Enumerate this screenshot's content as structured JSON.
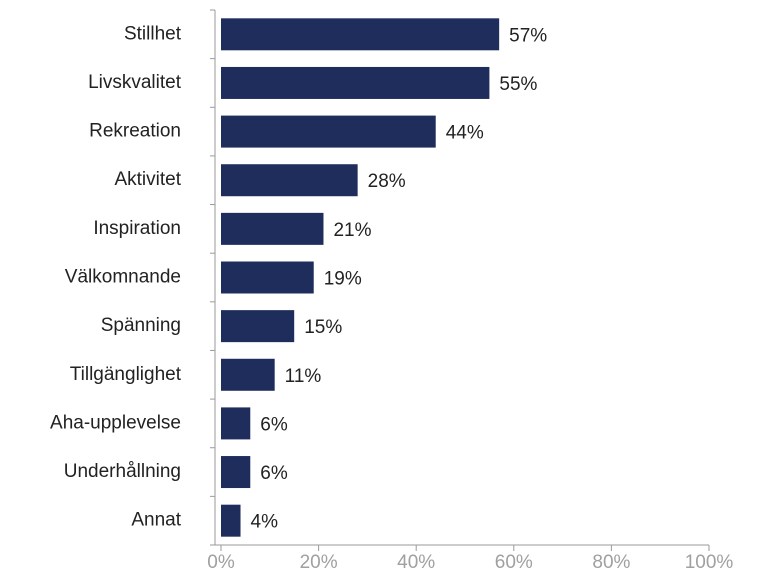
{
  "chart_data": {
    "type": "bar",
    "orientation": "horizontal",
    "categories": [
      "Stillhet",
      "Livskvalitet",
      "Rekreation",
      "Aktivitet",
      "Inspiration",
      "Välkomnande",
      "Spänning",
      "Tillgänglighet",
      "Aha-upplevelse",
      "Underhållning",
      "Annat"
    ],
    "values": [
      57,
      55,
      44,
      28,
      21,
      19,
      15,
      11,
      6,
      6,
      4
    ],
    "value_labels": [
      "57%",
      "55%",
      "44%",
      "28%",
      "21%",
      "19%",
      "15%",
      "11%",
      "6%",
      "6%",
      "4%"
    ],
    "color": "#1f2d5c",
    "xlim": [
      0,
      100
    ],
    "xticks": [
      {
        "value": 0,
        "label": "0%"
      },
      {
        "value": 20,
        "label": "20%"
      },
      {
        "value": 40,
        "label": "40%"
      },
      {
        "value": 60,
        "label": "60%"
      },
      {
        "value": 80,
        "label": "80%"
      },
      {
        "value": 100,
        "label": "100%"
      }
    ]
  }
}
